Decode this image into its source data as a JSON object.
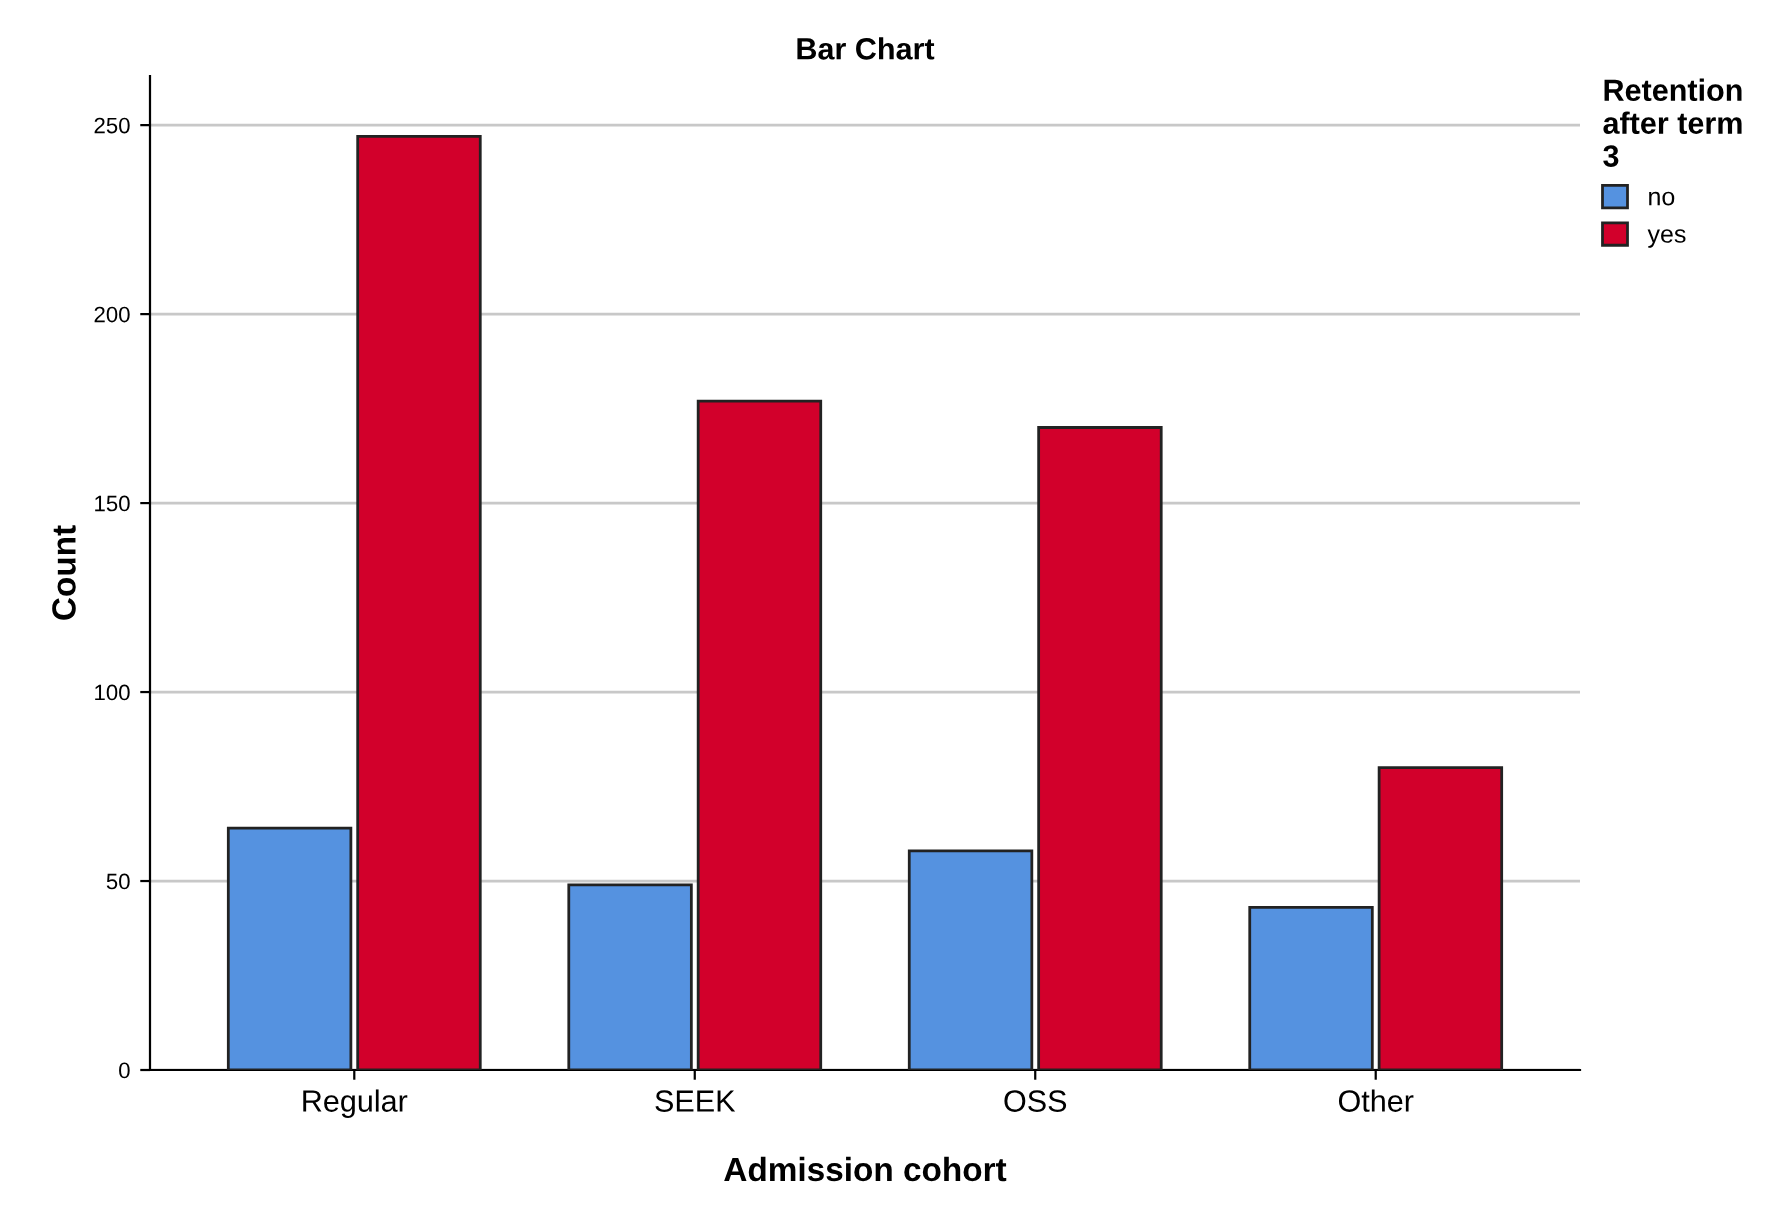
{
  "chart_data": {
    "type": "bar",
    "title": "Bar Chart",
    "xlabel": "Admission cohort",
    "ylabel": "Count",
    "legend_title": "Retention after term 3",
    "categories": [
      "Regular",
      "SEEK",
      "OSS",
      "Other"
    ],
    "series": [
      {
        "name": "no",
        "color": "#5592e0",
        "values": [
          64,
          49,
          58,
          43
        ]
      },
      {
        "name": "yes",
        "color": "#d2002b",
        "values": [
          247,
          177,
          170,
          80
        ]
      }
    ],
    "ylim": [
      0,
      263
    ],
    "yticks": [
      0,
      50,
      100,
      150,
      200,
      250
    ],
    "grid": "y",
    "legend": "top right"
  }
}
